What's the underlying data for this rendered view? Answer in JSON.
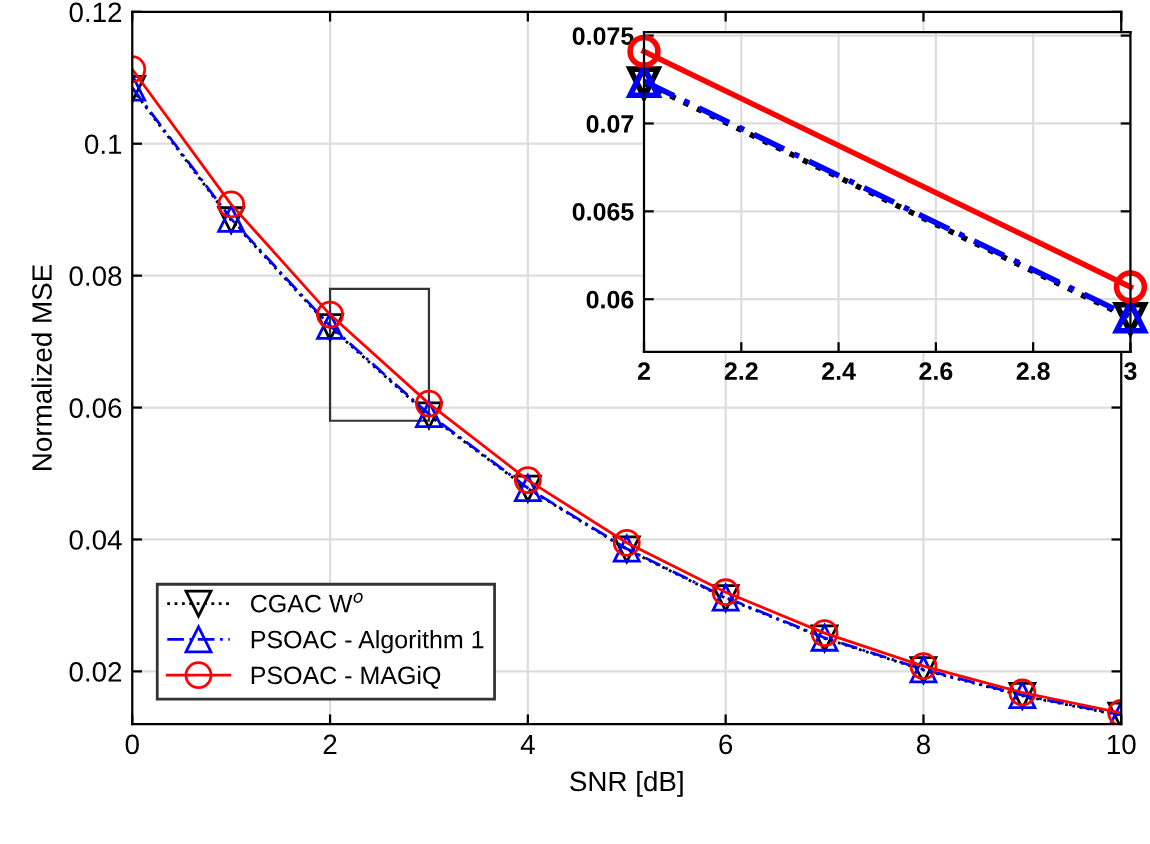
{
  "chart_data": [
    {
      "type": "line",
      "xlabel": "SNR [dB]",
      "ylabel": "Normalized MSE",
      "x": [
        0,
        1,
        2,
        3,
        4,
        5,
        6,
        7,
        8,
        9,
        10
      ],
      "series": [
        {
          "name": "CGAC W$^{o}$",
          "color": "#000000",
          "marker": "triangle_down",
          "line_style": "dotted",
          "values": [
            0.1083,
            0.0884,
            0.0722,
            0.0588,
            0.0477,
            0.0385,
            0.0311,
            0.025,
            0.0202,
            0.0163,
            0.0133
          ]
        },
        {
          "name": "PSOAC - Algorithm 1",
          "color": "#0000ff",
          "marker": "triangle",
          "line_style": "dashed",
          "values": [
            0.1085,
            0.0886,
            0.0724,
            0.059,
            0.0478,
            0.0386,
            0.0312,
            0.0251,
            0.0203,
            0.0164,
            0.0134
          ]
        },
        {
          "name": "PSOAC - MAGiQ",
          "color": "#ff0000",
          "marker": "circle",
          "line_style": "solid",
          "values": [
            0.1113,
            0.0908,
            0.0741,
            0.0606,
            0.049,
            0.0395,
            0.032,
            0.0258,
            0.0208,
            0.0168,
            0.0137
          ]
        }
      ],
      "xlim": [
        0,
        10
      ],
      "ylim": [
        0.012,
        0.12
      ],
      "xticks": [
        0,
        2,
        4,
        6,
        8,
        10
      ],
      "yticks": [
        0.02,
        0.04,
        0.06,
        0.08,
        0.1,
        0.12
      ],
      "grid": true,
      "legend": "bottom left"
    },
    {
      "type": "line",
      "x": [
        2,
        3
      ],
      "series": [
        {
          "color": "#000000",
          "marker": "triangle_down",
          "line_style": "dotted",
          "values": [
            0.0723,
            0.0589
          ]
        },
        {
          "color": "#0000ff",
          "marker": "triangle",
          "line_style": "dashed",
          "values": [
            0.0724,
            0.059
          ]
        },
        {
          "color": "#ff0000",
          "marker": "circle",
          "line_style": "solid",
          "values": [
            0.0741,
            0.0607
          ]
        }
      ],
      "xlim": [
        2,
        3
      ],
      "ylim": [
        0.057,
        0.0752
      ],
      "xticks": [
        2,
        2.2,
        2.4,
        2.6,
        2.8,
        3
      ],
      "yticks": [
        0.06,
        0.065,
        0.07,
        0.075
      ],
      "grid": true
    }
  ]
}
